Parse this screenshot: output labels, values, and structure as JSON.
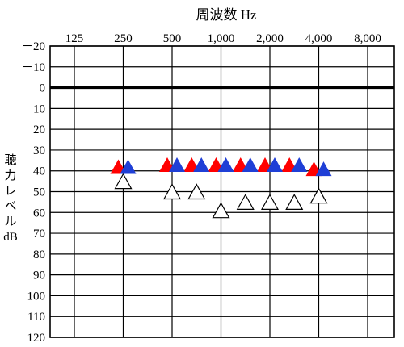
{
  "chart_data": {
    "type": "scatter",
    "title": "周波数 Hz",
    "ylabel_lines": [
      "聴",
      "力",
      "レ",
      "ベ",
      "ル",
      "dB"
    ],
    "x_categories": [
      "125",
      "250",
      "500",
      "1,000",
      "2,000",
      "4,000",
      "8,000"
    ],
    "x_values_hz": [
      125,
      250,
      500,
      1000,
      2000,
      4000,
      8000
    ],
    "y_tick_labels": [
      "－20",
      "－10",
      "0",
      "10",
      "20",
      "30",
      "40",
      "50",
      "60",
      "70",
      "80",
      "90",
      "100",
      "110",
      "120"
    ],
    "y_ticks": [
      -20,
      -10,
      0,
      10,
      20,
      30,
      40,
      50,
      60,
      70,
      80,
      90,
      100,
      110,
      120
    ],
    "ylim": [
      -20,
      120
    ],
    "y_inverted": true,
    "x_scale": "log2",
    "grid": true,
    "reference_line_y": 0,
    "series": [
      {
        "color": "#ff0000",
        "marker": "filled-triangle",
        "points": [
          {
            "x": 250,
            "y": 38
          },
          {
            "x": 500,
            "y": 37
          },
          {
            "x": 707,
            "y": 37
          },
          {
            "x": 1000,
            "y": 37
          },
          {
            "x": 1414,
            "y": 37
          },
          {
            "x": 2000,
            "y": 37
          },
          {
            "x": 2828,
            "y": 37
          },
          {
            "x": 4000,
            "y": 39
          }
        ]
      },
      {
        "color": "#1f3fd6",
        "marker": "filled-triangle",
        "points": [
          {
            "x": 250,
            "y": 38
          },
          {
            "x": 500,
            "y": 37
          },
          {
            "x": 707,
            "y": 37
          },
          {
            "x": 1000,
            "y": 37
          },
          {
            "x": 1414,
            "y": 37
          },
          {
            "x": 2000,
            "y": 37
          },
          {
            "x": 2828,
            "y": 37
          },
          {
            "x": 4000,
            "y": 39
          }
        ]
      },
      {
        "color": "#ffffff",
        "marker": "open-triangle",
        "points": [
          {
            "x": 250,
            "y": 45
          },
          {
            "x": 500,
            "y": 50
          },
          {
            "x": 707,
            "y": 50
          },
          {
            "x": 1000,
            "y": 59
          },
          {
            "x": 1414,
            "y": 55
          },
          {
            "x": 2000,
            "y": 55
          },
          {
            "x": 2828,
            "y": 55
          },
          {
            "x": 4000,
            "y": 52
          }
        ]
      }
    ]
  }
}
